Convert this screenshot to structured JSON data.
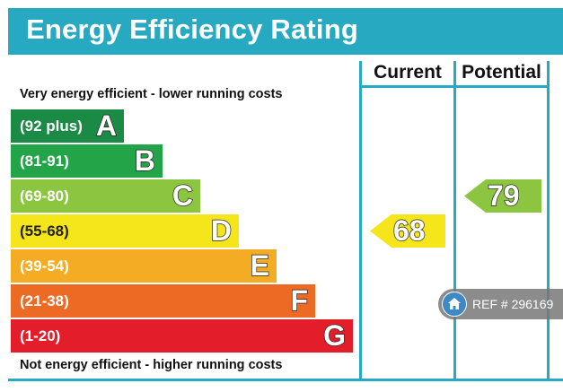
{
  "title": "Energy Efficiency Rating",
  "header": {
    "current": "Current",
    "potential": "Potential"
  },
  "top_caption": "Very energy efficient - lower running costs",
  "bottom_caption": "Not energy efficient - higher running costs",
  "chart_data": {
    "type": "bar",
    "title": "Energy Efficiency Rating",
    "categories": [
      "A",
      "B",
      "C",
      "D",
      "E",
      "F",
      "G"
    ],
    "bands": [
      {
        "letter": "A",
        "range": "(92 plus)",
        "min": 92,
        "max": 100,
        "color": "#1b8a44"
      },
      {
        "letter": "B",
        "range": "(81-91)",
        "min": 81,
        "max": 91,
        "color": "#24a449"
      },
      {
        "letter": "C",
        "range": "(69-80)",
        "min": 69,
        "max": 80,
        "color": "#8cc540"
      },
      {
        "letter": "D",
        "range": "(55-68)",
        "min": 55,
        "max": 68,
        "color": "#f4e61a"
      },
      {
        "letter": "E",
        "range": "(39-54)",
        "min": 39,
        "max": 54,
        "color": "#f5ac25"
      },
      {
        "letter": "F",
        "range": "(21-38)",
        "min": 21,
        "max": 38,
        "color": "#ed6a25"
      },
      {
        "letter": "G",
        "range": "(1-20)",
        "min": 1,
        "max": 20,
        "color": "#e31d2a"
      }
    ],
    "series": [
      {
        "name": "Current",
        "value": 68,
        "band": "D"
      },
      {
        "name": "Potential",
        "value": 79,
        "band": "C"
      }
    ]
  },
  "colors": {
    "banner": "#27a9c1",
    "lines": "#27a9c1"
  },
  "watermark": {
    "text": "REF # 296169",
    "icon": "home-icon"
  }
}
